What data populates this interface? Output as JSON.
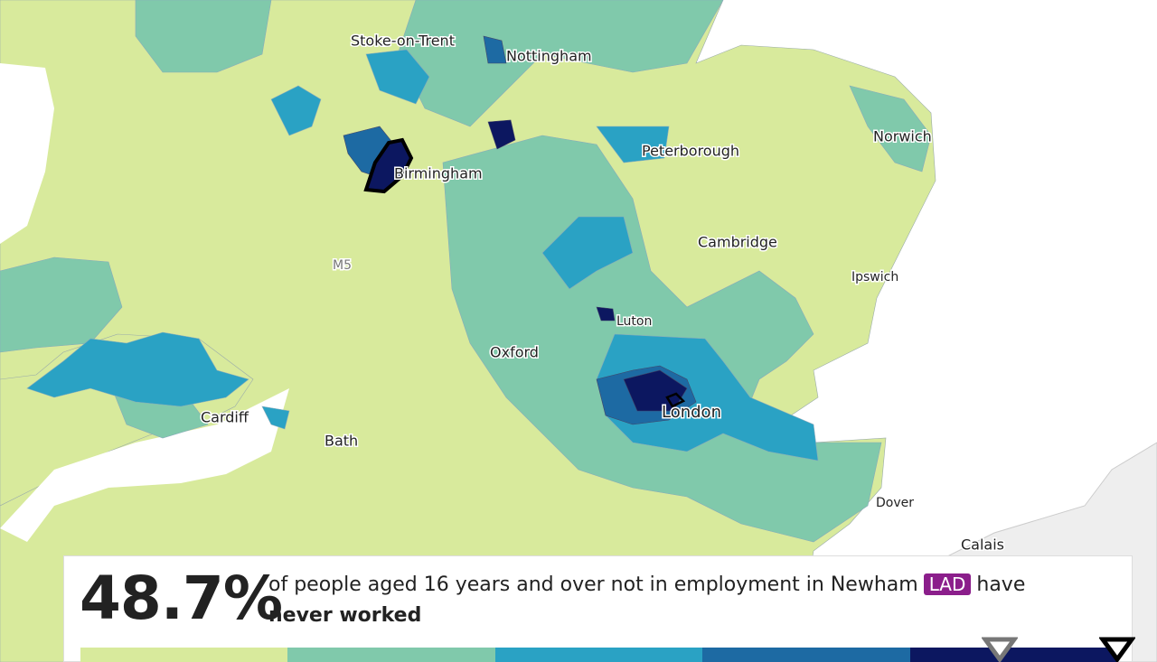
{
  "map": {
    "places": [
      "Stoke-on-Trent",
      "Nottingham",
      "Peterborough",
      "Norwich",
      "Birmingham",
      "Cambridge",
      "Ipswich",
      "Luton",
      "Oxford",
      "London",
      "Cardiff",
      "Bath",
      "Dover",
      "Calais"
    ],
    "road": "M5"
  },
  "info_panel": {
    "value": "48.7%",
    "text_before": "of people aged 16 years and over not in employment in Newham",
    "badge": "LAD",
    "text_after": "have",
    "emphasis": "never worked"
  },
  "legend": {
    "colors": [
      "#d8ea9c",
      "#80c9ab",
      "#2aa2c4",
      "#1d6aa3",
      "#0c1760"
    ]
  }
}
